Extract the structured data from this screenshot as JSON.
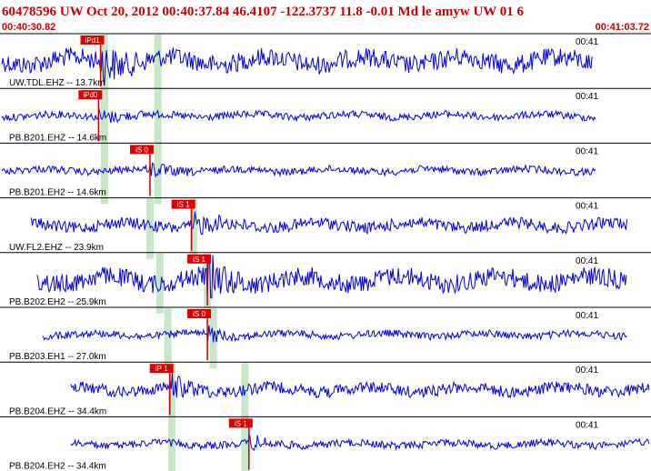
{
  "header": {
    "title": "60478596 UW Oct 20, 2012 00:40:37.84   46.4107 -122.3737 11.8 -0.01 Md le amyw UW 01   6",
    "start_time": "00:40:30.82",
    "end_time": "00:41:03.72"
  },
  "colors": {
    "title": "#cc0000",
    "time_label": "#cc0000",
    "trace": "#0000e6",
    "pick_box": "#e00000",
    "pick_line": "#cc0000",
    "window": "#c8e6c8",
    "separator": "#000000"
  },
  "chart_data": {
    "type": "line",
    "title": "60478596 UW Oct 20, 2012 00:40:37.84   46.4107 -122.3737 11.8 -0.01 Md le amyw UW 01   6",
    "x_range": [
      "00:40:30.82",
      "00:41:03.72"
    ],
    "x_tick_label": "00:41",
    "grid": false,
    "traces": [
      {
        "label": "UW.TDL.EHZ -- 13.7km",
        "tick": "00:41",
        "pick": "iPd1",
        "pick_time": "00:40:35.9",
        "s_window": "00:40:36.1",
        "second_window": "00:40:38.8",
        "data_start": "00:40:30.82",
        "amplitude": "high"
      },
      {
        "label": "PB.B201.EHZ -- 14.6km",
        "tick": "00:41",
        "pick": "iPd0",
        "pick_time": "00:40:35.8",
        "s_window": "00:40:36.1",
        "second_window": "00:40:38.8",
        "data_start": "00:40:30.82",
        "amplitude": "low"
      },
      {
        "label": "PB.B201.EH2 -- 14.6km",
        "tick": "00:41",
        "pick": "iS 0",
        "pick_time": "00:40:38.4",
        "s_window": "00:40:36.1",
        "second_window": "00:40:38.8",
        "data_start": "00:40:30.82",
        "amplitude": "low"
      },
      {
        "label": "UW.FL2.EHZ -- 23.9km",
        "tick": "00:41",
        "pick": "iS 1",
        "pick_time": "00:40:40.5",
        "s_window": "00:40:38.4",
        "second_window": "00:40:40.6",
        "data_start": "00:40:32.4",
        "amplitude": "medium"
      },
      {
        "label": "PB.B202.EH2 -- 25.9km",
        "tick": "00:41",
        "pick": "iS 1",
        "pick_time": "00:40:41.3",
        "s_window": "00:40:38.9",
        "second_window": "00:40:41.3",
        "data_start": "00:40:32.7",
        "amplitude": "high"
      },
      {
        "label": "PB.B203.EH1 -- 27.0km",
        "tick": "00:41",
        "pick": "iS 0",
        "pick_time": "00:40:41.3",
        "s_window": "00:40:39.3",
        "second_window": "00:40:41.6",
        "data_start": "00:40:33.0",
        "amplitude": "low"
      },
      {
        "label": "PB.B204.EHZ -- 34.4km",
        "tick": "00:41",
        "pick": "iP 1",
        "pick_time": "00:40:39.4",
        "s_window": "00:40:39.5",
        "second_window": "00:40:43.2",
        "data_start": "00:40:34.4",
        "amplitude": "medium"
      },
      {
        "label": "PB.B204.EH2 -- 34.4km",
        "tick": "00:41",
        "pick": "iS 1",
        "pick_time": "00:40:43.4",
        "s_window": "00:40:39.5",
        "second_window": "00:40:43.2",
        "data_start": "00:40:34.4",
        "amplitude": "low"
      }
    ]
  }
}
